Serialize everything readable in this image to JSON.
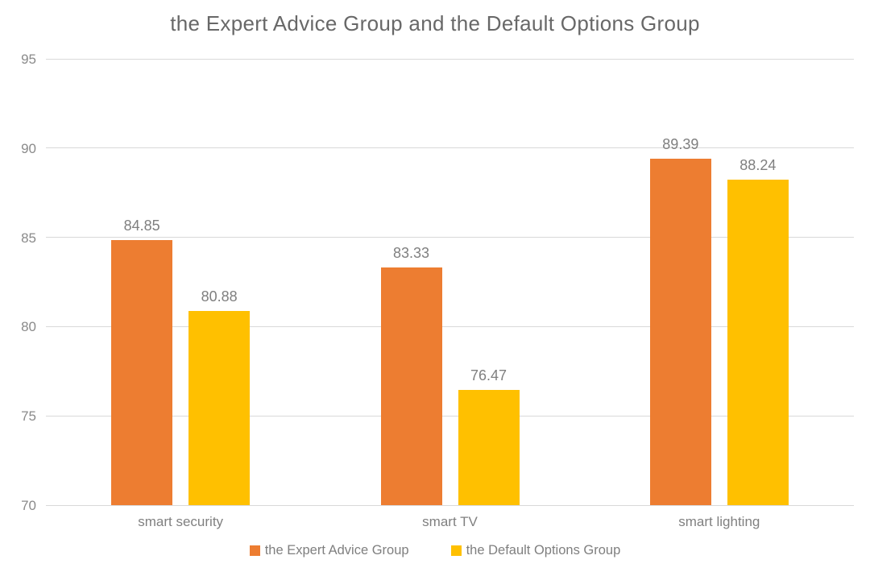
{
  "chart_data": {
    "type": "bar",
    "title": "the Expert Advice Group and the Default Options Group",
    "categories": [
      "smart security",
      "smart TV",
      "smart lighting"
    ],
    "series": [
      {
        "name": "the Expert Advice Group",
        "color": "#ED7D31",
        "values": [
          84.85,
          83.33,
          89.39
        ],
        "value_labels": [
          "84.85",
          "83.33",
          "89.39"
        ]
      },
      {
        "name": "the Default Options Group",
        "color": "#FFC000",
        "values": [
          80.88,
          76.47,
          88.24
        ],
        "value_labels": [
          "80.88",
          "76.47",
          "88.24"
        ]
      }
    ],
    "xlabel": "",
    "ylabel": "",
    "ylim": [
      70,
      95
    ],
    "ytick_step": 5,
    "ytick_labels": [
      "70",
      "75",
      "80",
      "85",
      "90",
      "95"
    ],
    "grid": "horizontal",
    "gridline_color": "#d9d9d9",
    "legend_position": "bottom",
    "label_color": "#7f7f7f",
    "title_color": "#686868"
  }
}
